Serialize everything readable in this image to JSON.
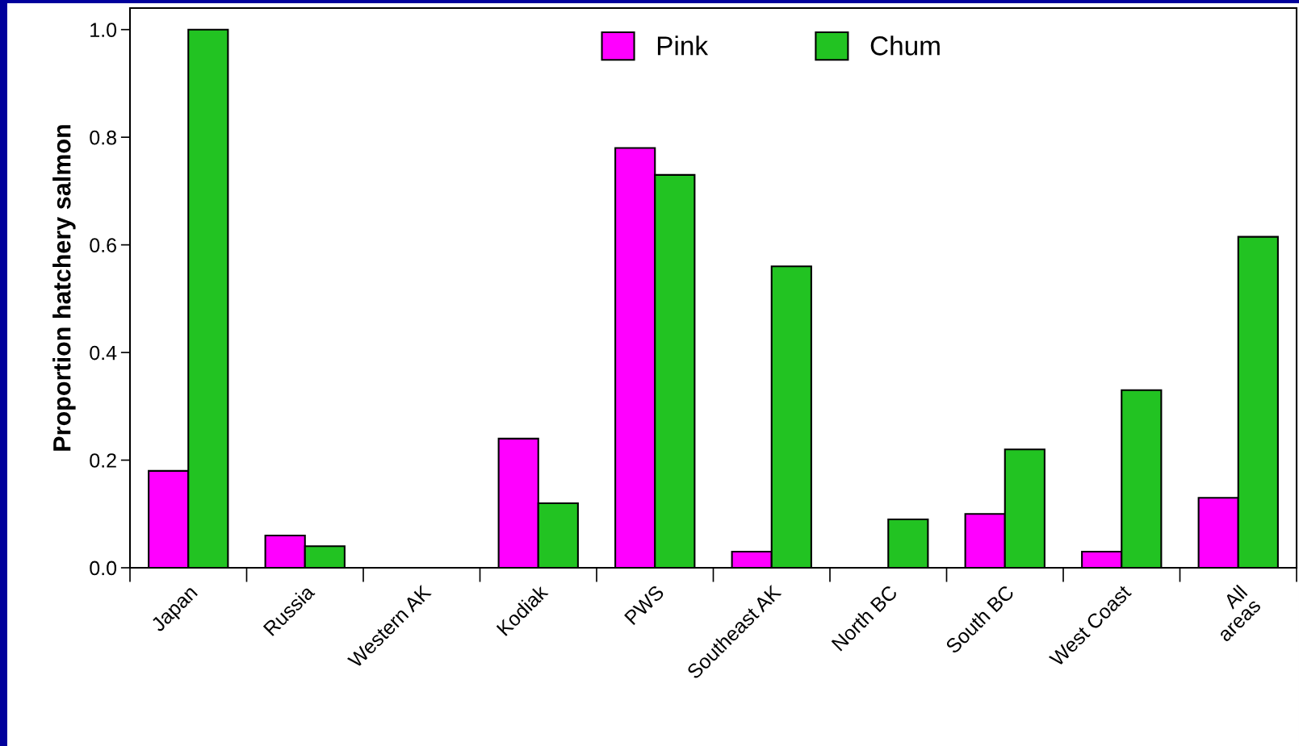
{
  "chart_data": {
    "type": "bar",
    "ylabel": "Proportion hatchery salmon",
    "categories": [
      "Japan",
      "Russia",
      "Western AK",
      "Kodiak",
      "PWS",
      "Southeast AK",
      "North BC",
      "South BC",
      "West Coast",
      "All\nareas"
    ],
    "series": [
      {
        "name": "Pink",
        "color": "#ff00ff",
        "values": [
          0.18,
          0.06,
          null,
          0.24,
          0.78,
          0.03,
          null,
          0.1,
          0.03,
          0.13
        ]
      },
      {
        "name": "Chum",
        "color": "#22c322",
        "values": [
          1.0,
          0.04,
          null,
          0.12,
          0.73,
          0.56,
          0.09,
          0.22,
          0.33,
          0.615
        ]
      }
    ],
    "ylim": [
      0,
      1.04
    ],
    "yticks": [
      {
        "value": 0,
        "label": "0.0"
      },
      0.2,
      0.4,
      0.6,
      0.8,
      {
        "value": 1,
        "label": "1.0"
      }
    ],
    "grid": false,
    "legend": "top"
  }
}
